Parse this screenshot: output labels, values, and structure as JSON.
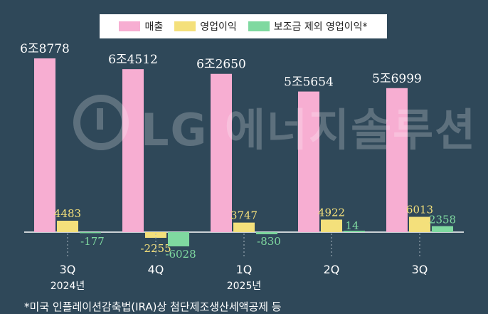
{
  "legend": {
    "items": [
      {
        "label": "매출",
        "color": "#f7aed2"
      },
      {
        "label": "영업이익",
        "color": "#f4e07b"
      },
      {
        "label": "보조금 제외 영업이익*",
        "color": "#7fd9a0"
      }
    ]
  },
  "watermark": {
    "text": "LG 에너지솔루션"
  },
  "footnote": "*미국 인플레이션감축법(IRA)상 첨단제조생산세액공제 등",
  "chart_data": {
    "type": "bar",
    "categories": [
      "3Q",
      "4Q",
      "1Q",
      "2Q",
      "3Q"
    ],
    "years": [
      "2024년",
      "",
      "2025년",
      "",
      ""
    ],
    "series": [
      {
        "name": "매출",
        "color": "#f7aed2",
        "values": [
          68778,
          64512,
          62650,
          55654,
          56999
        ],
        "labels": [
          "6조8778",
          "6조4512",
          "6조2650",
          "5조5654",
          "5조6999"
        ]
      },
      {
        "name": "영업이익",
        "color": "#f4e07b",
        "values": [
          4483,
          -2255,
          3747,
          4922,
          6013
        ],
        "labels": [
          "4483",
          "-2255",
          "3747",
          "4922",
          "6013"
        ]
      },
      {
        "name": "보조금 제외 영업이익*",
        "color": "#7fd9a0",
        "values": [
          -177,
          -6028,
          -830,
          14,
          2358
        ],
        "labels": [
          "-177",
          "-6028",
          "-830",
          "14",
          "2358"
        ]
      }
    ]
  }
}
